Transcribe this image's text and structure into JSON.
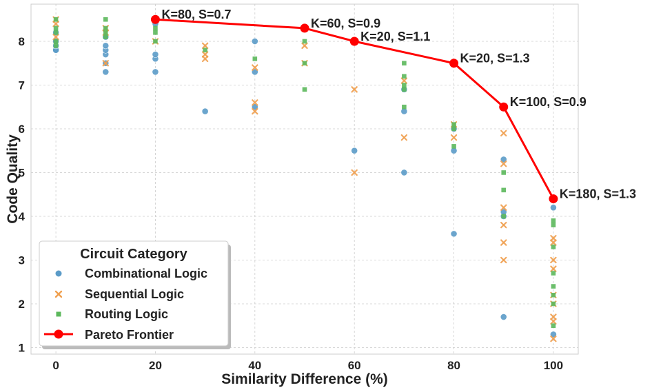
{
  "chart_data": {
    "type": "scatter",
    "title": "",
    "xlabel": "Similarity Difference (%)",
    "ylabel": "Code Quality",
    "xlim": [
      -5,
      105
    ],
    "ylim": [
      0.85,
      8.85
    ],
    "xticks": [
      0,
      20,
      40,
      60,
      80,
      100
    ],
    "yticks": [
      1,
      2,
      3,
      4,
      5,
      6,
      7,
      8
    ],
    "grid": true,
    "legend": {
      "title": "Circuit Category",
      "position": "lower-left",
      "entries": [
        "Combinational Logic",
        "Sequential Logic",
        "Routing Logic",
        "Pareto Frontier"
      ]
    },
    "series": [
      {
        "name": "Combinational Logic",
        "marker": "circle",
        "color": "#5b9bc8",
        "points": [
          [
            0,
            7.8
          ],
          [
            0,
            7.8
          ],
          [
            0,
            7.9
          ],
          [
            0,
            8.0
          ],
          [
            0,
            8.2
          ],
          [
            10,
            7.3
          ],
          [
            10,
            7.5
          ],
          [
            10,
            7.7
          ],
          [
            10,
            7.8
          ],
          [
            10,
            7.9
          ],
          [
            10,
            8.1
          ],
          [
            20,
            7.3
          ],
          [
            20,
            7.6
          ],
          [
            20,
            7.7
          ],
          [
            20,
            8.4
          ],
          [
            30,
            6.4
          ],
          [
            40,
            6.5
          ],
          [
            40,
            7.3
          ],
          [
            40,
            8.0
          ],
          [
            60,
            5.5
          ],
          [
            70,
            5.0
          ],
          [
            70,
            6.4
          ],
          [
            70,
            6.9
          ],
          [
            80,
            3.6
          ],
          [
            80,
            5.5
          ],
          [
            80,
            6.0
          ],
          [
            90,
            1.7
          ],
          [
            90,
            4.0
          ],
          [
            90,
            4.1
          ],
          [
            90,
            5.3
          ],
          [
            100,
            1.3
          ],
          [
            100,
            4.2
          ]
        ]
      },
      {
        "name": "Sequential Logic",
        "marker": "x",
        "color": "#f0a050",
        "points": [
          [
            0,
            8.5
          ],
          [
            0,
            8.4
          ],
          [
            0,
            8.1
          ],
          [
            10,
            7.5
          ],
          [
            10,
            8.2
          ],
          [
            10,
            8.3
          ],
          [
            20,
            8.0
          ],
          [
            20,
            8.5
          ],
          [
            30,
            7.6
          ],
          [
            30,
            7.7
          ],
          [
            30,
            7.9
          ],
          [
            40,
            6.4
          ],
          [
            40,
            6.6
          ],
          [
            40,
            7.4
          ],
          [
            50,
            7.5
          ],
          [
            50,
            7.9
          ],
          [
            60,
            5.0
          ],
          [
            60,
            6.9
          ],
          [
            70,
            5.8
          ],
          [
            70,
            7.1
          ],
          [
            80,
            5.8
          ],
          [
            80,
            6.1
          ],
          [
            90,
            3.0
          ],
          [
            90,
            3.4
          ],
          [
            90,
            3.8
          ],
          [
            90,
            4.2
          ],
          [
            90,
            5.2
          ],
          [
            90,
            5.9
          ],
          [
            100,
            1.2
          ],
          [
            100,
            1.6
          ],
          [
            100,
            1.7
          ],
          [
            100,
            2.0
          ],
          [
            100,
            2.2
          ],
          [
            100,
            2.8
          ],
          [
            100,
            3.0
          ],
          [
            100,
            3.4
          ],
          [
            100,
            3.5
          ]
        ]
      },
      {
        "name": "Routing Logic",
        "marker": "square",
        "color": "#5cb85c",
        "points": [
          [
            0,
            7.9
          ],
          [
            0,
            8.0
          ],
          [
            0,
            8.2
          ],
          [
            0,
            8.3
          ],
          [
            0,
            8.5
          ],
          [
            10,
            8.1
          ],
          [
            10,
            8.2
          ],
          [
            10,
            8.3
          ],
          [
            10,
            8.5
          ],
          [
            20,
            8.0
          ],
          [
            20,
            8.2
          ],
          [
            20,
            8.3
          ],
          [
            30,
            7.8
          ],
          [
            40,
            7.6
          ],
          [
            50,
            6.9
          ],
          [
            50,
            7.5
          ],
          [
            50,
            8.0
          ],
          [
            70,
            6.5
          ],
          [
            70,
            6.9
          ],
          [
            70,
            7.0
          ],
          [
            70,
            7.2
          ],
          [
            70,
            7.5
          ],
          [
            80,
            5.6
          ],
          [
            80,
            6.0
          ],
          [
            80,
            6.1
          ],
          [
            90,
            4.0
          ],
          [
            90,
            4.6
          ],
          [
            90,
            5.0
          ],
          [
            100,
            1.5
          ],
          [
            100,
            2.0
          ],
          [
            100,
            2.2
          ],
          [
            100,
            2.4
          ],
          [
            100,
            2.7
          ],
          [
            100,
            3.3
          ],
          [
            100,
            3.8
          ],
          [
            100,
            3.9
          ]
        ]
      }
    ],
    "pareto": {
      "name": "Pareto Frontier",
      "color": "#ff0000",
      "points": [
        {
          "x": 20,
          "y": 8.5,
          "label": "K=80, S=0.7"
        },
        {
          "x": 50,
          "y": 8.3,
          "label": "K=60, S=0.9"
        },
        {
          "x": 60,
          "y": 8.0,
          "label": "K=20, S=1.1"
        },
        {
          "x": 80,
          "y": 7.5,
          "label": "K=20, S=1.3"
        },
        {
          "x": 90,
          "y": 6.5,
          "label": "K=100, S=0.9"
        },
        {
          "x": 100,
          "y": 4.4,
          "label": "K=180, S=1.3"
        }
      ]
    }
  }
}
